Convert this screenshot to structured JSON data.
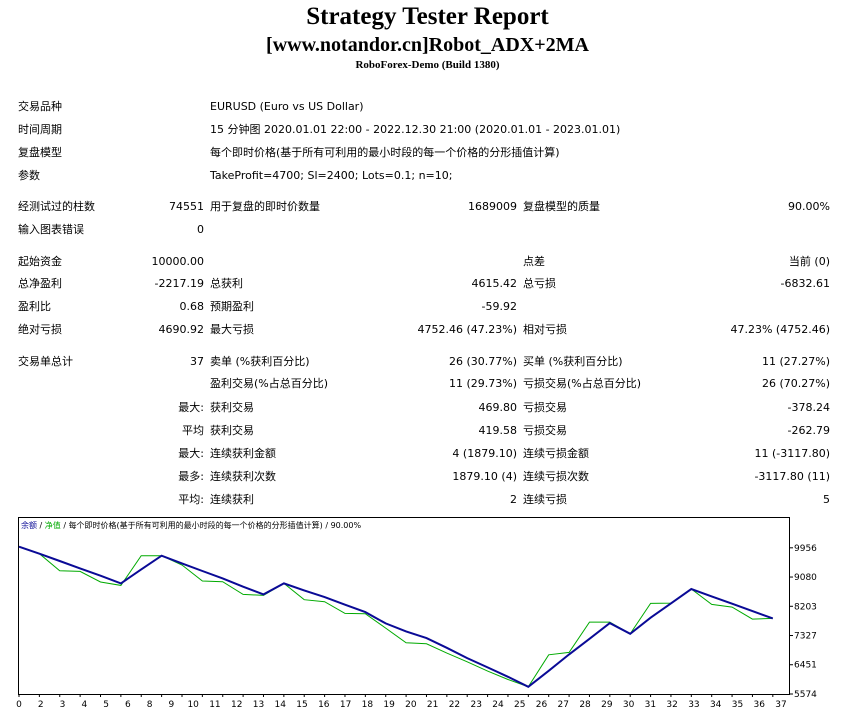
{
  "header": {
    "title": "Strategy Tester Report",
    "subtitle": "[www.notandor.cn]Robot_ADX+2MA",
    "server": "RoboForex-Demo (Build 1380)"
  },
  "settings": {
    "symbol_label": "交易品种",
    "symbol_value": "EURUSD (Euro vs US Dollar)",
    "period_label": "时间周期",
    "period_value": "15 分钟图 2020.01.01 22:00 - 2022.12.30 21:00 (2020.01.01 - 2023.01.01)",
    "model_label": "复盘模型",
    "model_value": "每个即时价格(基于所有可利用的最小时段的每一个价格的分形插值计算)",
    "params_label": "参数",
    "params_value": "TakeProfit=4700; Sl=2400; Lots=0.1; n=10;"
  },
  "stats": {
    "bars_label": "经测试过的柱数",
    "bars_value": "74551",
    "ticks_label": "用于复盘的即时价数量",
    "ticks_value": "1689009",
    "quality_label": "复盘模型的质量",
    "quality_value": "90.00%",
    "errors_label": "输入图表错误",
    "errors_value": "0",
    "deposit_label": "起始资金",
    "deposit_value": "10000.00",
    "spread_label": "点差",
    "spread_value": "当前 (0)",
    "netprofit_label": "总净盈利",
    "netprofit_value": "-2217.19",
    "grossprofit_label": "总获利",
    "grossprofit_value": "4615.42",
    "grossloss_label": "总亏损",
    "grossloss_value": "-6832.61",
    "pf_label": "盈利比",
    "pf_value": "0.68",
    "expected_label": "预期盈利",
    "expected_value": "-59.92",
    "absdd_label": "绝对亏损",
    "absdd_value": "4690.92",
    "maxdd_label": "最大亏损",
    "maxdd_value": "4752.46 (47.23%)",
    "reldd_label": "相对亏损",
    "reldd_value": "47.23% (4752.46)"
  },
  "trades": {
    "total_label": "交易单总计",
    "total_value": "37",
    "short_label": "卖单 (%获利百分比)",
    "short_value": "26 (30.77%)",
    "long_label": "买单 (%获利百分比)",
    "long_value": "11 (27.27%)",
    "profit_trades_label": "盈利交易(%占总百分比)",
    "profit_trades_value": "11 (29.73%)",
    "loss_trades_label": "亏损交易(%占总百分比)",
    "loss_trades_value": "26 (70.27%)",
    "max_label": "最大:",
    "largest_profit_label": "获利交易",
    "largest_profit_value": "469.80",
    "largest_loss_label": "亏损交易",
    "largest_loss_value": "-378.24",
    "avg_label": "平均",
    "avg_profit_label": "获利交易",
    "avg_profit_value": "419.58",
    "avg_loss_label": "亏损交易",
    "avg_loss_value": "-262.79",
    "max2_label": "最大:",
    "max_cons_wins_label": "连续获利金额",
    "max_cons_wins_value": "4 (1879.10)",
    "max_cons_losses_label": "连续亏损金额",
    "max_cons_losses_value": "11 (-3117.80)",
    "most_label": "最多:",
    "max_cons_profit_label": "连续获利次数",
    "max_cons_profit_value": "1879.10 (4)",
    "max_cons_loss_label": "连续亏损次数",
    "max_cons_loss_value": "-3117.80 (11)",
    "avg2_label": "平均:",
    "avg_cons_wins_label": "连续获利",
    "avg_cons_wins_value": "2",
    "avg_cons_losses_label": "连续亏损",
    "avg_cons_losses_value": "5"
  },
  "chart_data": {
    "type": "line",
    "legend_balance": "余额",
    "legend_sep1": " / ",
    "legend_equity": "净值",
    "legend_rest": " / 每个即时价格(基于所有可利用的最小时段的每一个价格的分形插值计算) / 90.00%",
    "colors": {
      "balance": "#0a0a96",
      "equity": "#00aa00",
      "border": "#000000"
    },
    "ylim": [
      5574,
      10400
    ],
    "xlim": [
      0,
      37.5
    ],
    "y_ticks": [
      9956,
      9080,
      8203,
      7327,
      6451,
      5574
    ],
    "x_ticks": [
      0,
      1,
      2,
      3,
      4,
      5,
      6,
      7,
      8,
      9,
      10,
      11,
      12,
      13,
      14,
      15,
      16,
      17,
      18,
      19,
      20,
      21,
      22,
      23,
      24,
      25,
      26,
      27,
      28,
      29,
      30,
      31,
      32,
      33,
      34,
      35,
      36,
      37
    ],
    "x_tick_labels": [
      0,
      2,
      3,
      4,
      5,
      6,
      8,
      9,
      10,
      11,
      12,
      13,
      14,
      15,
      16,
      17,
      18,
      19,
      20,
      21,
      22,
      23,
      24,
      25,
      26,
      27,
      28,
      29,
      30,
      31,
      32,
      33,
      34,
      35,
      36,
      37
    ],
    "series": [
      {
        "name": "余额",
        "x": [
          0,
          1,
          2,
          3,
          4,
          5,
          6,
          7,
          8,
          9,
          10,
          11,
          12,
          13,
          14,
          15,
          16,
          17,
          18,
          19,
          20,
          21,
          22,
          23,
          24,
          25,
          26,
          27,
          28,
          29,
          30,
          31,
          32,
          33,
          34,
          35,
          36,
          37
        ],
        "values": [
          9990,
          9780,
          9560,
          9340,
          9120,
          8890,
          9310,
          9720,
          9490,
          9260,
          9040,
          8790,
          8560,
          8890,
          8680,
          8480,
          8250,
          8030,
          7690,
          7450,
          7250,
          6960,
          6650,
          6370,
          6090,
          5790,
          6270,
          6760,
          7230,
          7700,
          7380,
          7860,
          8290,
          8720,
          8500,
          8280,
          8060,
          7840
        ]
      },
      {
        "name": "净值",
        "x": [
          0,
          1,
          2,
          3,
          4,
          5,
          6,
          7,
          8,
          9,
          10,
          11,
          12,
          13,
          14,
          15,
          16,
          17,
          18,
          19,
          20,
          21,
          22,
          23,
          24,
          25,
          26,
          27,
          28,
          29,
          30,
          31,
          32,
          33,
          34,
          35,
          36,
          37
        ],
        "values": [
          9990,
          9780,
          9270,
          9250,
          8930,
          8830,
          9720,
          9720,
          9440,
          8960,
          8940,
          8560,
          8530,
          8890,
          8400,
          8340,
          7990,
          7980,
          7550,
          7110,
          7080,
          6800,
          6540,
          6260,
          6010,
          5790,
          6750,
          6820,
          7730,
          7730,
          7380,
          8290,
          8300,
          8720,
          8260,
          8180,
          7820,
          7840
        ]
      }
    ]
  }
}
